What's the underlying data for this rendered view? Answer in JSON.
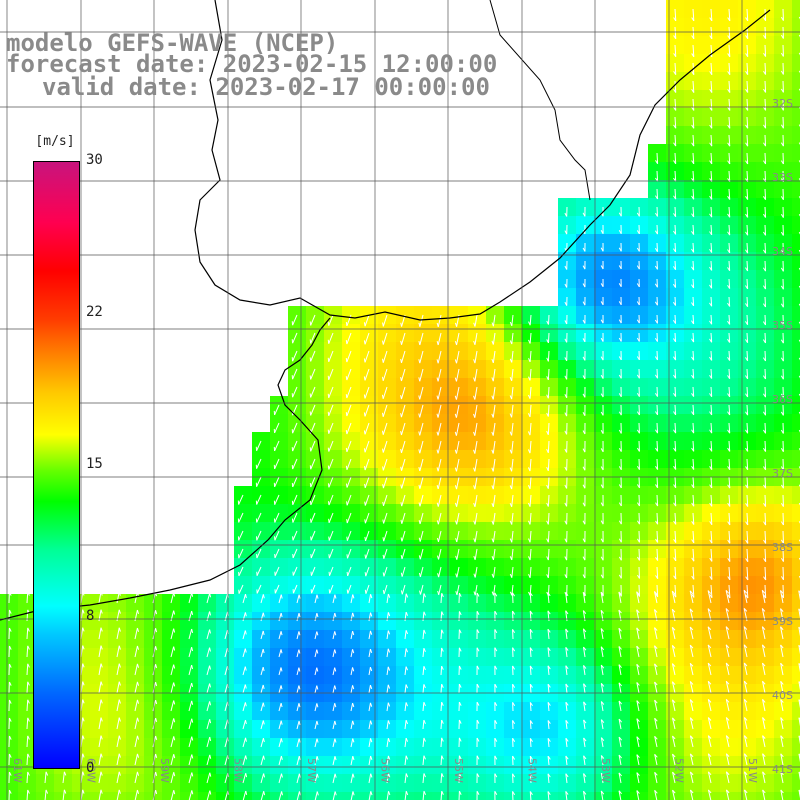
{
  "titles": {
    "line1": "modelo GEFS-WAVE (NCEP)",
    "line2": "forecast date: 2023-02-15 12:00:00",
    "line3": "valid date: 2023-02-17 00:00:00"
  },
  "colorbar": {
    "unit": "[m/s]",
    "ticks": [
      "30",
      "22",
      "15",
      "8",
      "0"
    ],
    "range": [
      0,
      30
    ]
  },
  "map": {
    "grid_lines": true,
    "land_color": "#ffffff",
    "lat_labels": [
      "32S",
      "33S",
      "34S",
      "35S",
      "36S",
      "37S",
      "38S",
      "39S",
      "40S",
      "41S"
    ],
    "lon_labels": [
      "61W",
      "60W",
      "59W",
      "58W",
      "57W",
      "56W",
      "55W",
      "54W",
      "53W",
      "52W",
      "51W"
    ],
    "vectors": "white arrows"
  }
}
